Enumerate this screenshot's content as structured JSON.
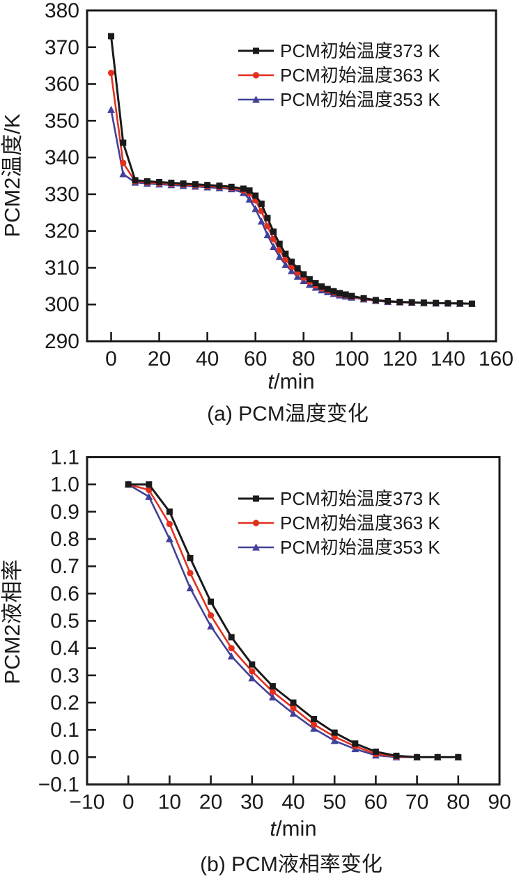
{
  "figure": {
    "frame_color": "#1a1a1a",
    "background": "#ffffff"
  },
  "chart_data": [
    {
      "id": "a",
      "type": "line",
      "caption": "(a) PCM温度变化",
      "xlabel_italic": "t",
      "xlabel_unit": "/min",
      "ylabel": "PCM2温度/K",
      "xlim": [
        -10,
        160
      ],
      "ylim": [
        290,
        380
      ],
      "grid": false,
      "legend_position": "upper-right",
      "xticks": {
        "values": [
          0,
          20,
          40,
          60,
          80,
          100,
          120,
          140,
          160
        ],
        "labels": [
          "0",
          "20",
          "40",
          "60",
          "80",
          "100",
          "120",
          "140",
          "160"
        ]
      },
      "yticks": {
        "values": [
          290,
          300,
          310,
          320,
          330,
          340,
          350,
          360,
          370,
          380
        ],
        "labels": [
          "290",
          "300",
          "310",
          "320",
          "330",
          "340",
          "350",
          "360",
          "370",
          "380"
        ]
      },
      "series": [
        {
          "name": "PCM初始温度373 K",
          "color": "#1a1a1a",
          "marker": "square",
          "line_width": 3,
          "points": [
            [
              0,
              373
            ],
            [
              5,
              344
            ],
            [
              10,
              333.8
            ],
            [
              15,
              333.5
            ],
            [
              20,
              333.3
            ],
            [
              25,
              333.1
            ],
            [
              30,
              332.9
            ],
            [
              35,
              332.7
            ],
            [
              40,
              332.5
            ],
            [
              45,
              332.3
            ],
            [
              50,
              332.0
            ],
            [
              55,
              331.5
            ],
            [
              57.5,
              331.0
            ],
            [
              60,
              329.6
            ],
            [
              62.5,
              327.4
            ],
            [
              65,
              323.5
            ],
            [
              67.5,
              319.8
            ],
            [
              70,
              316.5
            ],
            [
              72.5,
              313.8
            ],
            [
              75,
              311.6
            ],
            [
              77.5,
              309.8
            ],
            [
              80,
              308.2
            ],
            [
              82.5,
              306.9
            ],
            [
              85,
              305.8
            ],
            [
              87.5,
              304.9
            ],
            [
              90,
              304.2
            ],
            [
              92.5,
              303.6
            ],
            [
              95,
              303.1
            ],
            [
              97.5,
              302.7
            ],
            [
              100,
              302.3
            ],
            [
              105,
              301.7
            ],
            [
              110,
              301.2
            ],
            [
              115,
              300.9
            ],
            [
              120,
              300.7
            ],
            [
              125,
              300.6
            ],
            [
              130,
              300.5
            ],
            [
              135,
              300.4
            ],
            [
              140,
              300.3
            ],
            [
              145,
              300.3
            ],
            [
              150,
              300.2
            ]
          ]
        },
        {
          "name": "PCM初始温度363 K",
          "color": "#e2301f",
          "marker": "circle",
          "line_width": 2.6,
          "points": [
            [
              0,
              363
            ],
            [
              5,
              338.5
            ],
            [
              10,
              333.5
            ],
            [
              15,
              333.2
            ],
            [
              20,
              333.0
            ],
            [
              25,
              332.8
            ],
            [
              30,
              332.6
            ],
            [
              35,
              332.4
            ],
            [
              40,
              332.2
            ],
            [
              45,
              332.0
            ],
            [
              50,
              331.7
            ],
            [
              55,
              331.0
            ],
            [
              57.5,
              330.2
            ],
            [
              60,
              328.3
            ],
            [
              62.5,
              325.4
            ],
            [
              65,
              321.3
            ],
            [
              67.5,
              317.8
            ],
            [
              70,
              314.8
            ],
            [
              72.5,
              312.3
            ],
            [
              75,
              310.3
            ],
            [
              77.5,
              308.7
            ],
            [
              80,
              307.3
            ],
            [
              82.5,
              306.2
            ],
            [
              85,
              305.2
            ],
            [
              87.5,
              304.4
            ],
            [
              90,
              303.8
            ],
            [
              92.5,
              303.3
            ],
            [
              95,
              302.8
            ],
            [
              97.5,
              302.5
            ],
            [
              100,
              302.1
            ],
            [
              105,
              301.5
            ],
            [
              110,
              301.1
            ],
            [
              115,
              300.8
            ],
            [
              120,
              300.6
            ],
            [
              125,
              300.5
            ],
            [
              130,
              300.4
            ],
            [
              135,
              300.4
            ],
            [
              140,
              300.3
            ],
            [
              145,
              300.3
            ],
            [
              150,
              300.2
            ]
          ]
        },
        {
          "name": "PCM初始温度353 K",
          "color": "#414198",
          "marker": "triangle",
          "line_width": 2.6,
          "points": [
            [
              0,
              353
            ],
            [
              5,
              335.5
            ],
            [
              10,
              333.2
            ],
            [
              15,
              332.9
            ],
            [
              20,
              332.7
            ],
            [
              25,
              332.5
            ],
            [
              30,
              332.3
            ],
            [
              35,
              332.1
            ],
            [
              40,
              331.9
            ],
            [
              45,
              331.7
            ],
            [
              50,
              331.4
            ],
            [
              55,
              330.4
            ],
            [
              57.5,
              328.6
            ],
            [
              60,
              326.0
            ],
            [
              62.5,
              322.6
            ],
            [
              65,
              318.9
            ],
            [
              67.5,
              315.7
            ],
            [
              70,
              313.0
            ],
            [
              72.5,
              310.8
            ],
            [
              75,
              309.1
            ],
            [
              77.5,
              307.6
            ],
            [
              80,
              306.4
            ],
            [
              82.5,
              305.4
            ],
            [
              85,
              304.6
            ],
            [
              87.5,
              303.9
            ],
            [
              90,
              303.4
            ],
            [
              92.5,
              302.9
            ],
            [
              95,
              302.5
            ],
            [
              97.5,
              302.2
            ],
            [
              100,
              301.9
            ],
            [
              105,
              301.4
            ],
            [
              110,
              301.0
            ],
            [
              115,
              300.7
            ],
            [
              120,
              300.6
            ],
            [
              125,
              300.5
            ],
            [
              130,
              300.4
            ],
            [
              135,
              300.3
            ],
            [
              140,
              300.3
            ],
            [
              145,
              300.2
            ],
            [
              150,
              300.2
            ]
          ]
        }
      ]
    },
    {
      "id": "b",
      "type": "line",
      "caption": "(b) PCM液相率变化",
      "xlabel_italic": "t",
      "xlabel_unit": "/min",
      "ylabel": "PCM2液相率",
      "xlim": [
        -10,
        90
      ],
      "ylim": [
        -0.1,
        1.1
      ],
      "grid": false,
      "legend_position": "upper-right",
      "xticks": {
        "values": [
          -10,
          0,
          10,
          20,
          30,
          40,
          50,
          60,
          70,
          80,
          90
        ],
        "labels": [
          "−10",
          "0",
          "10",
          "20",
          "30",
          "40",
          "50",
          "60",
          "70",
          "80",
          "90"
        ]
      },
      "yticks": {
        "values": [
          -0.1,
          0.0,
          0.1,
          0.2,
          0.3,
          0.4,
          0.5,
          0.6,
          0.7,
          0.8,
          0.9,
          1.0,
          1.1
        ],
        "labels": [
          "−0.1",
          "0.0",
          "0.1",
          "0.2",
          "0.3",
          "0.4",
          "0.5",
          "0.6",
          "0.7",
          "0.8",
          "0.9",
          "1.0",
          "1.1"
        ]
      },
      "series": [
        {
          "name": "PCM初始温度373 K",
          "color": "#1a1a1a",
          "marker": "square",
          "line_width": 3,
          "points": [
            [
              0,
              1.0
            ],
            [
              5,
              1.0
            ],
            [
              10,
              0.9
            ],
            [
              15,
              0.73
            ],
            [
              20,
              0.57
            ],
            [
              25,
              0.44
            ],
            [
              30,
              0.34
            ],
            [
              35,
              0.26
            ],
            [
              40,
              0.2
            ],
            [
              45,
              0.14
            ],
            [
              50,
              0.09
            ],
            [
              55,
              0.05
            ],
            [
              60,
              0.02
            ],
            [
              65,
              0.005
            ],
            [
              70,
              0.0
            ],
            [
              75,
              0.0
            ],
            [
              80,
              0.0
            ]
          ]
        },
        {
          "name": "PCM初始温度363 K",
          "color": "#e2301f",
          "marker": "circle",
          "line_width": 2.6,
          "points": [
            [
              0,
              1.0
            ],
            [
              5,
              0.98
            ],
            [
              10,
              0.855
            ],
            [
              15,
              0.675
            ],
            [
              20,
              0.52
            ],
            [
              25,
              0.4
            ],
            [
              30,
              0.315
            ],
            [
              35,
              0.24
            ],
            [
              40,
              0.18
            ],
            [
              45,
              0.12
            ],
            [
              50,
              0.075
            ],
            [
              55,
              0.04
            ],
            [
              60,
              0.012
            ],
            [
              65,
              0.002
            ],
            [
              70,
              0.0
            ],
            [
              75,
              0.0
            ],
            [
              80,
              0.0
            ]
          ]
        },
        {
          "name": "PCM初始温度353 K",
          "color": "#414198",
          "marker": "triangle",
          "line_width": 2.6,
          "points": [
            [
              0,
              1.0
            ],
            [
              5,
              0.955
            ],
            [
              10,
              0.8
            ],
            [
              15,
              0.62
            ],
            [
              20,
              0.48
            ],
            [
              25,
              0.37
            ],
            [
              30,
              0.29
            ],
            [
              35,
              0.22
            ],
            [
              40,
              0.16
            ],
            [
              45,
              0.105
            ],
            [
              50,
              0.06
            ],
            [
              55,
              0.03
            ],
            [
              60,
              0.007
            ],
            [
              65,
              0.0
            ],
            [
              70,
              0.0
            ],
            [
              75,
              0.0
            ],
            [
              80,
              0.0
            ]
          ]
        }
      ]
    }
  ]
}
